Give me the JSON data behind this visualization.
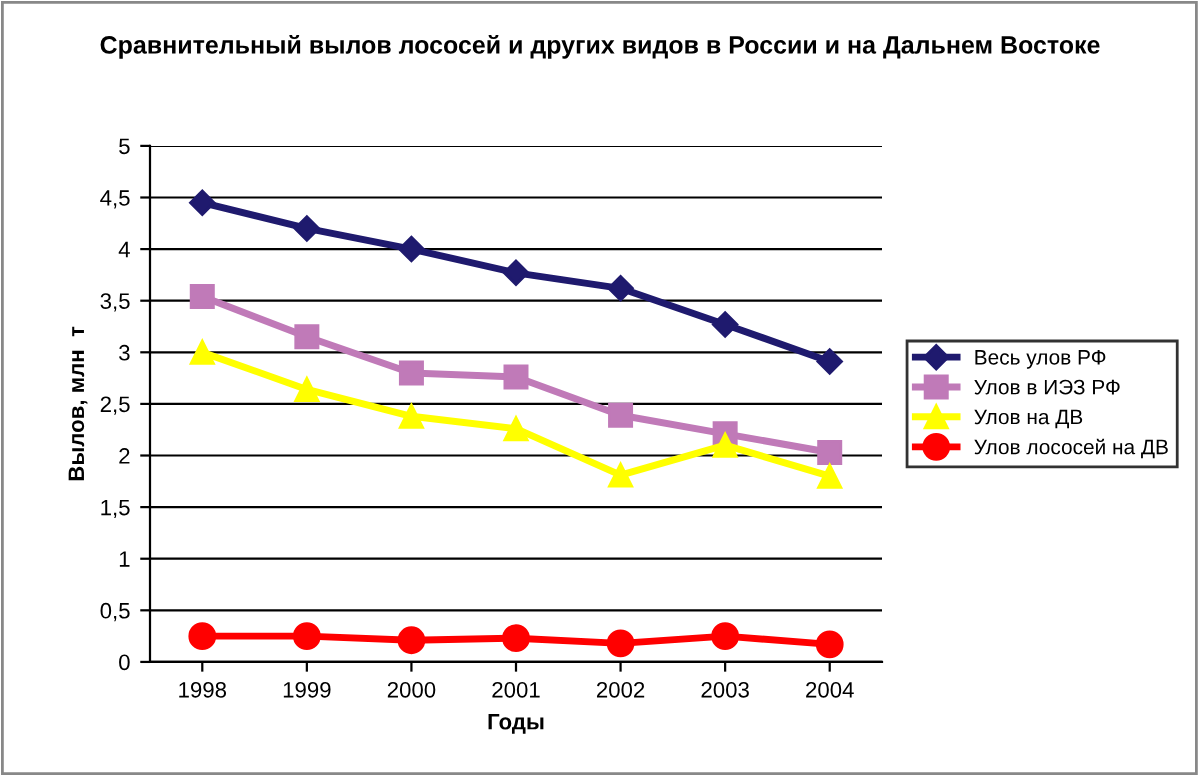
{
  "chart_data": {
    "type": "line",
    "title": "Сравнительный вылов лососей и других видов в России и на Дальнем Востоке",
    "xlabel": "Годы",
    "ylabel": "Вылов, млн  т",
    "categories": [
      "1998",
      "1999",
      "2000",
      "2001",
      "2002",
      "2003",
      "2004"
    ],
    "series": [
      {
        "name": "Весь улов РФ",
        "color": "#1f1a6e",
        "marker": "diamond",
        "values": [
          4.45,
          4.2,
          4.0,
          3.77,
          3.62,
          3.27,
          2.91
        ]
      },
      {
        "name": "Улов в ИЭЗ РФ",
        "color": "#c07ab8",
        "marker": "square",
        "values": [
          3.54,
          3.15,
          2.8,
          2.76,
          2.39,
          2.21,
          2.03
        ]
      },
      {
        "name": "Улов на ДВ",
        "color": "#ffff00",
        "marker": "triangle",
        "values": [
          3.0,
          2.64,
          2.38,
          2.26,
          1.81,
          2.1,
          1.8
        ]
      },
      {
        "name": "Улов лососей на ДВ",
        "color": "#ff0000",
        "marker": "circle",
        "values": [
          0.25,
          0.25,
          0.21,
          0.23,
          0.18,
          0.25,
          0.17
        ]
      }
    ],
    "ylim": [
      0,
      5
    ],
    "yticks": [
      0,
      {
        "value": 0.5,
        "label": "0,5"
      },
      1,
      {
        "value": 1.5,
        "label": "1,5"
      },
      2,
      {
        "value": 2.5,
        "label": "2,5"
      },
      3,
      {
        "value": 3.5,
        "label": "3,5"
      },
      4,
      {
        "value": 4.5,
        "label": "4,5"
      },
      5
    ],
    "grid": "y",
    "legend": "right"
  }
}
